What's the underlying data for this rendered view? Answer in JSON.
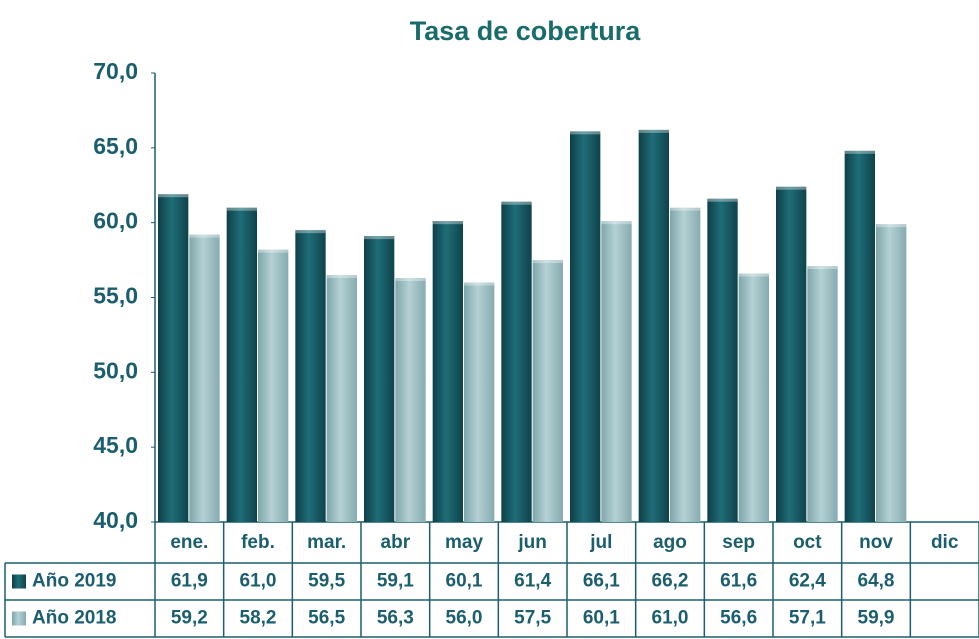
{
  "chart_data": {
    "type": "bar",
    "title": "Tasa de cobertura",
    "categories": [
      "ene.",
      "feb.",
      "mar.",
      "abr",
      "may",
      "jun",
      "jul",
      "ago",
      "sep",
      "oct",
      "nov",
      "dic"
    ],
    "series": [
      {
        "name": "Año 2019",
        "color": "#1b5f68",
        "values": [
          61.9,
          61.0,
          59.5,
          59.1,
          60.1,
          61.4,
          66.1,
          66.2,
          61.6,
          62.4,
          64.8,
          null
        ],
        "value_labels": [
          "61,9",
          "61,0",
          "59,5",
          "59,1",
          "60,1",
          "61,4",
          "66,1",
          "66,2",
          "61,6",
          "62,4",
          "64,8",
          null
        ]
      },
      {
        "name": "Año 2018",
        "color": "#9fc2c6",
        "values": [
          59.2,
          58.2,
          56.5,
          56.3,
          56.0,
          57.5,
          60.1,
          61.0,
          56.6,
          57.1,
          59.9,
          null
        ],
        "value_labels": [
          "59,2",
          "58,2",
          "56,5",
          "56,3",
          "56,0",
          "57,5",
          "60,1",
          "61,0",
          "56,6",
          "57,1",
          "59,9",
          null
        ]
      }
    ],
    "ylim": [
      40,
      70
    ],
    "yticks": [
      {
        "value": 40,
        "label": "40,0"
      },
      {
        "value": 45,
        "label": "45,0"
      },
      {
        "value": 50,
        "label": "50,0"
      },
      {
        "value": 55,
        "label": "55,0"
      },
      {
        "value": 60,
        "label": "60,0"
      },
      {
        "value": 65,
        "label": "65,0"
      },
      {
        "value": 70,
        "label": "70,0"
      }
    ],
    "grid": false
  }
}
